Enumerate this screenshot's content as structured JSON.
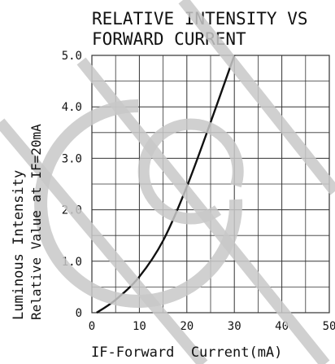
{
  "chart_data": {
    "type": "line",
    "title_lines": [
      "RELATIVE INTENSITY VS",
      "FORWARD CURRENT"
    ],
    "xlabel": "IF-Forward  Current(mA)",
    "ylabel_lines": [
      "Luminous  Intensity",
      "Relative Value at IF=20mA"
    ],
    "x_ticks": [
      "0",
      "10",
      "20",
      "30",
      "40",
      "50"
    ],
    "y_ticks": [
      "0",
      "1.0",
      "2.0",
      "3.0",
      "4.0",
      "5.0"
    ],
    "xlim": [
      0,
      50
    ],
    "ylim": [
      0,
      5
    ],
    "grid": true,
    "series": [
      {
        "x": [
          1,
          5,
          10,
          15,
          20,
          25,
          30
        ],
        "y": [
          0,
          0.25,
          0.7,
          1.4,
          2.45,
          3.7,
          5.0
        ]
      }
    ]
  },
  "colors": {
    "line": "#111111",
    "grid": "#333333",
    "watermark": "#c8c8c8"
  }
}
